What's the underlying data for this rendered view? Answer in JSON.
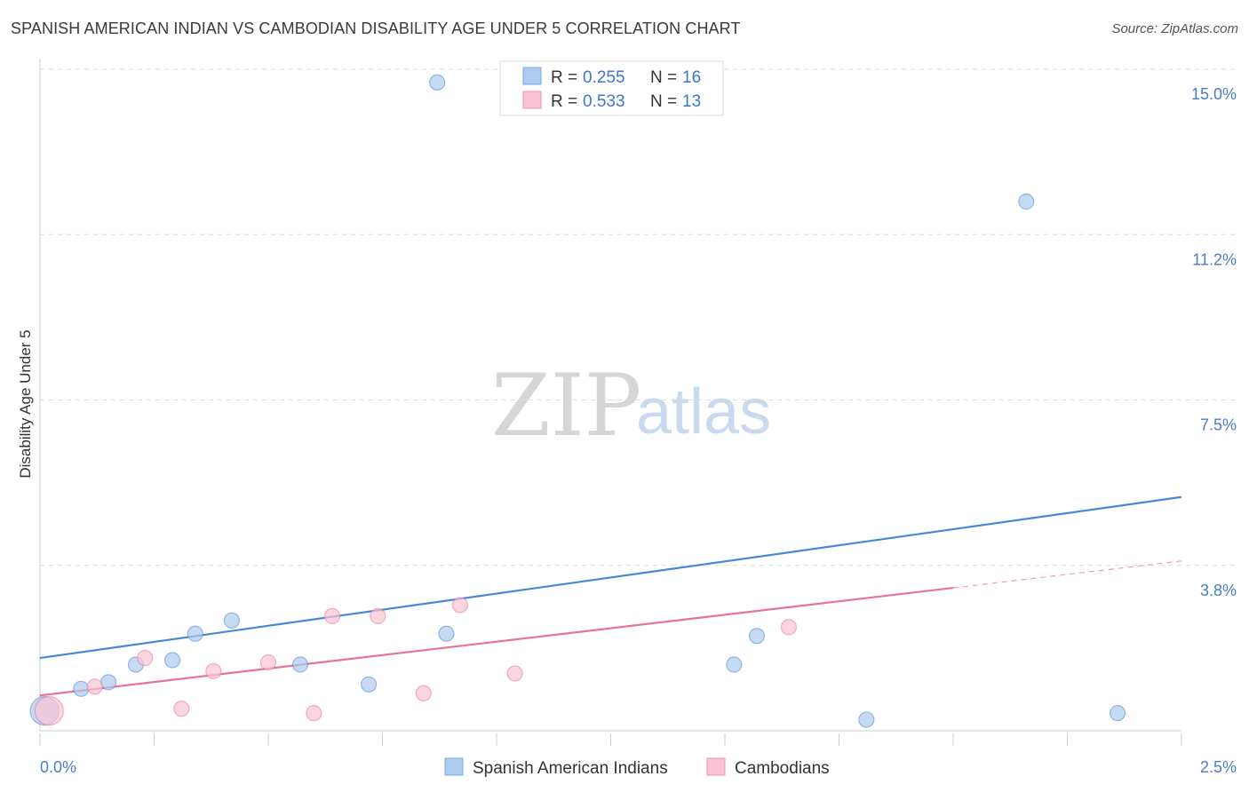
{
  "header": {
    "title": "SPANISH AMERICAN INDIAN VS CAMBODIAN DISABILITY AGE UNDER 5 CORRELATION CHART",
    "source": "Source: ZipAtlas.com"
  },
  "watermark": {
    "zip": "ZIP",
    "atlas": "atlas"
  },
  "legend_top": [
    {
      "r_label": "R = ",
      "r_value": "0.255",
      "n_label": "N = ",
      "n_value": "16",
      "color": "#aecbf0",
      "stroke": "#7aa6df"
    },
    {
      "r_label": "R = ",
      "r_value": "0.533",
      "n_label": "N = ",
      "n_value": "13",
      "color": "#f9c3d3",
      "stroke": "#ee93ae"
    }
  ],
  "legend_bottom": [
    {
      "label": "Spanish American Indians",
      "color": "#aecbf0",
      "stroke": "#7aa6df"
    },
    {
      "label": "Cambodians",
      "color": "#f9c3d3",
      "stroke": "#ee93ae"
    }
  ],
  "chart_data": {
    "type": "scatter",
    "ylabel": "Disability Age Under 5",
    "xlabel": "",
    "xlim": [
      0.0,
      2.5
    ],
    "ylim": [
      0.0,
      15.0
    ],
    "x_tick_labels": [
      {
        "value": 0.0,
        "label": "0.0%"
      },
      {
        "value": 2.5,
        "label": "2.5%"
      }
    ],
    "y_tick_labels": [
      {
        "value": 15.0,
        "label": "15.0%"
      },
      {
        "value": 11.25,
        "label": "11.2%"
      },
      {
        "value": 7.5,
        "label": "7.5%"
      },
      {
        "value": 3.75,
        "label": "3.8%"
      }
    ],
    "series": [
      {
        "name": "Spanish American Indians",
        "color": "#4a86d8",
        "fill": "#aecbf0",
        "points": [
          {
            "x": 0.01,
            "y": 0.45,
            "size": "large"
          },
          {
            "x": 0.09,
            "y": 0.95
          },
          {
            "x": 0.15,
            "y": 1.1
          },
          {
            "x": 0.21,
            "y": 1.5
          },
          {
            "x": 0.29,
            "y": 1.6
          },
          {
            "x": 0.34,
            "y": 2.2
          },
          {
            "x": 0.42,
            "y": 2.5
          },
          {
            "x": 0.57,
            "y": 1.5
          },
          {
            "x": 0.72,
            "y": 1.05
          },
          {
            "x": 0.87,
            "y": 14.7
          },
          {
            "x": 0.89,
            "y": 2.2
          },
          {
            "x": 1.52,
            "y": 1.5
          },
          {
            "x": 1.57,
            "y": 2.15
          },
          {
            "x": 1.81,
            "y": 0.25
          },
          {
            "x": 2.16,
            "y": 12.0
          },
          {
            "x": 2.36,
            "y": 0.4
          }
        ],
        "trend": {
          "x": [
            0.0,
            2.5
          ],
          "y": [
            1.65,
            5.3
          ]
        }
      },
      {
        "name": "Cambodians",
        "color": "#e8729a",
        "fill": "#f9c3d3",
        "points": [
          {
            "x": 0.02,
            "y": 0.45,
            "size": "large"
          },
          {
            "x": 0.12,
            "y": 1.0
          },
          {
            "x": 0.23,
            "y": 1.65
          },
          {
            "x": 0.31,
            "y": 0.5
          },
          {
            "x": 0.38,
            "y": 1.35
          },
          {
            "x": 0.5,
            "y": 1.55
          },
          {
            "x": 0.6,
            "y": 0.4
          },
          {
            "x": 0.64,
            "y": 2.6
          },
          {
            "x": 0.74,
            "y": 2.6
          },
          {
            "x": 0.84,
            "y": 0.85
          },
          {
            "x": 0.92,
            "y": 2.85
          },
          {
            "x": 1.04,
            "y": 1.3
          },
          {
            "x": 1.64,
            "y": 2.35
          }
        ],
        "trend": {
          "x": [
            0.0,
            2.5
          ],
          "y": [
            0.8,
            3.85
          ],
          "solid_until_x": 2.0
        }
      }
    ],
    "grid": true,
    "legend_placement": "top-center"
  }
}
